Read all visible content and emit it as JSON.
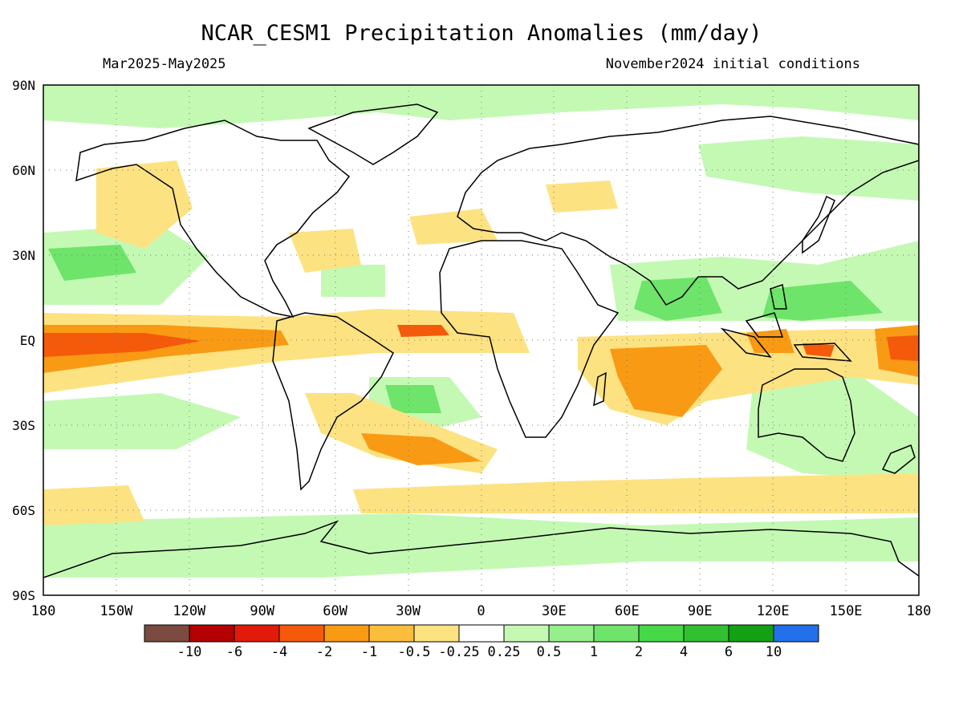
{
  "title": "NCAR_CESM1 Precipitation Anomalies (mm/day)",
  "period": "Mar2025-May2025",
  "init": "November2024 initial conditions",
  "lat_labels": [
    "90N",
    "60N",
    "30N",
    "EQ",
    "30S",
    "60S",
    "90S"
  ],
  "lon_labels": [
    "180",
    "150W",
    "120W",
    "90W",
    "60W",
    "30W",
    "0",
    "30E",
    "60E",
    "90E",
    "120E",
    "150E",
    "180"
  ],
  "colorbar": {
    "colors": [
      "#7b4b3f",
      "#b40000",
      "#e11a0a",
      "#f55a0a",
      "#f99a14",
      "#fbbe3c",
      "#fde282",
      "#ffffff",
      "#c4f9b4",
      "#96ee8c",
      "#6ee46a",
      "#46d846",
      "#30c030",
      "#14a014",
      "#2270ea"
    ],
    "labels": [
      "-10",
      "-6",
      "-4",
      "-2",
      "-1",
      "-0.5",
      "-0.25",
      "0.25",
      "0.5",
      "1",
      "2",
      "4",
      "6",
      "10"
    ]
  }
}
